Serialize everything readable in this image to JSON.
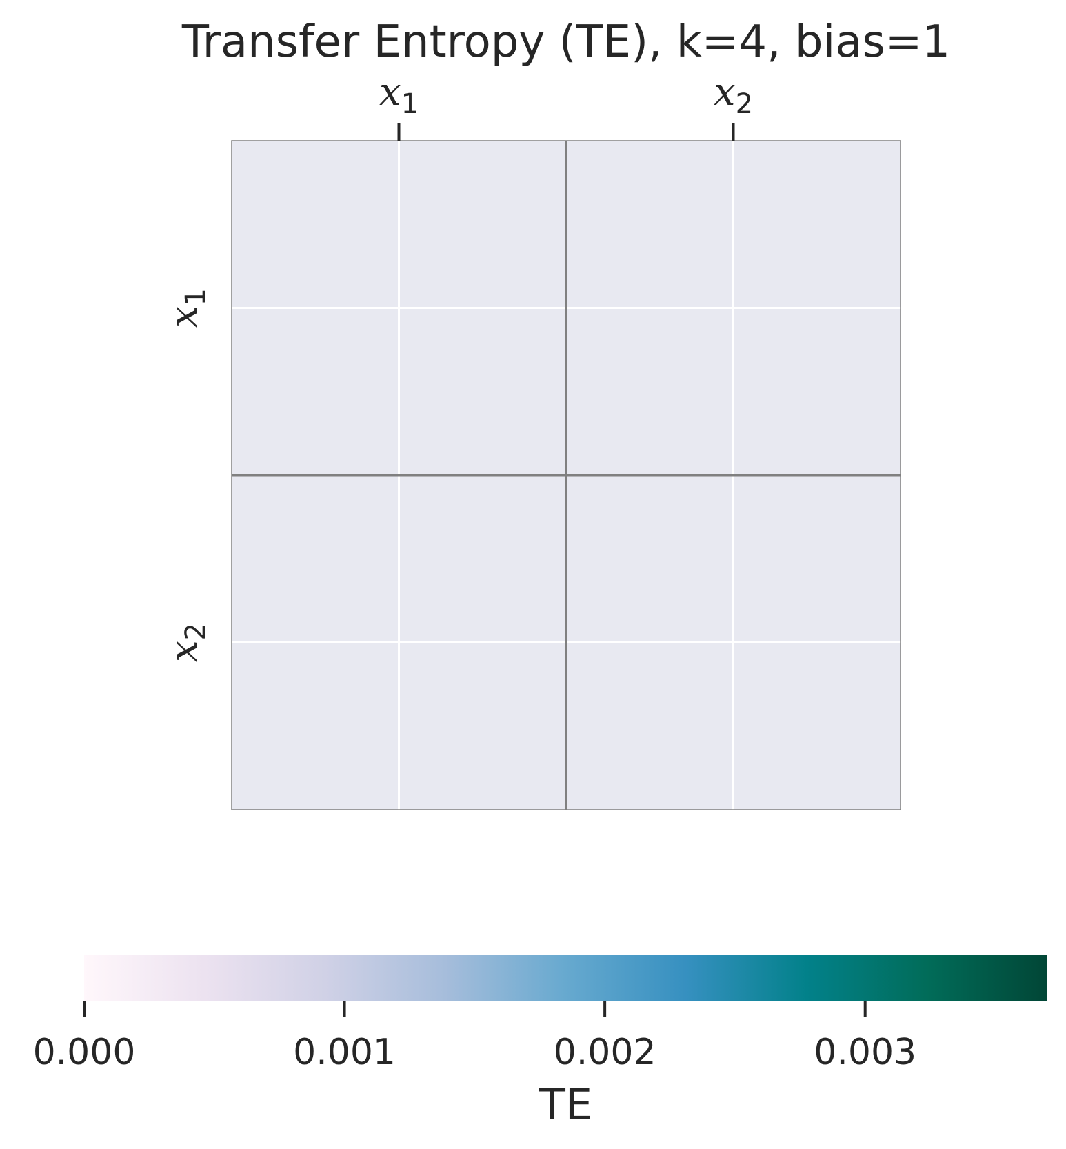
{
  "chart_data": {
    "type": "heatmap",
    "title": "Transfer Entropy (TE), k=4, bias=1",
    "x_categories": [
      {
        "base": "x",
        "sub": "1"
      },
      {
        "base": "x",
        "sub": "2"
      }
    ],
    "y_categories": [
      {
        "base": "x",
        "sub": "1"
      },
      {
        "base": "x",
        "sub": "2"
      }
    ],
    "values": [
      [
        null,
        null
      ],
      [
        null,
        null
      ]
    ],
    "cell_color": "#e8e9f1",
    "grid_color": "#ffffff",
    "cell_border_color": "#808080",
    "x_ticks_position": "top",
    "colorbar": {
      "label": "TE",
      "orientation": "horizontal",
      "placement": "bottom",
      "range": [
        0.0,
        0.0037
      ],
      "ticks": [
        0.0,
        0.001,
        0.002,
        0.003
      ],
      "tick_labels": [
        "0.000",
        "0.001",
        "0.002",
        "0.003"
      ],
      "colormap": "PuBuGn",
      "colormap_stops": [
        "#fff7fb",
        "#ece2f0",
        "#d0d1e6",
        "#a6bddb",
        "#67a9cf",
        "#3690c0",
        "#02818a",
        "#016c59",
        "#014636"
      ]
    }
  }
}
